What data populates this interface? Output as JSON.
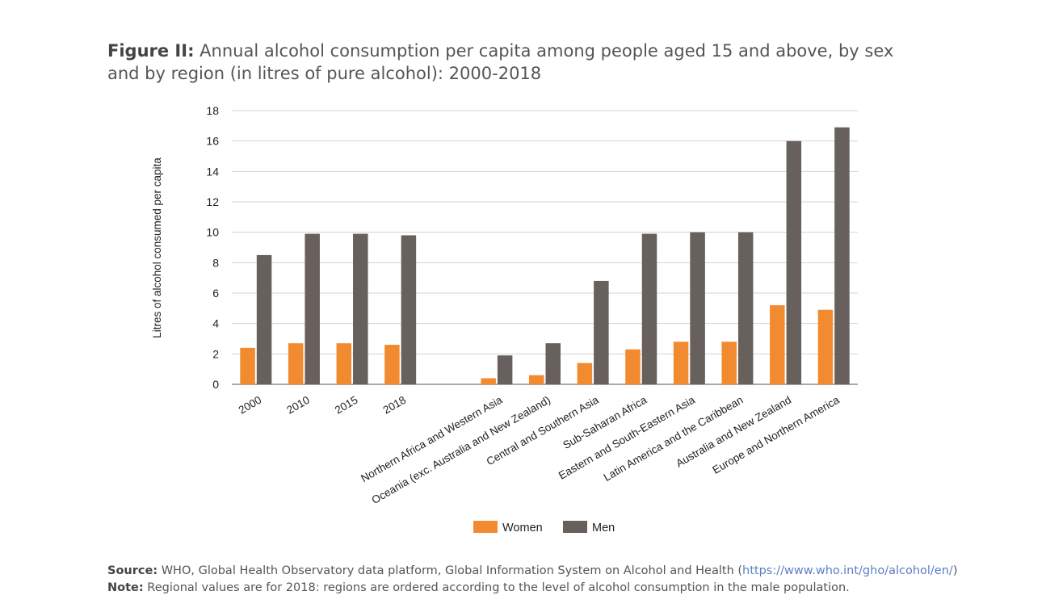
{
  "title": {
    "lead": "Figure II:",
    "text": "Annual alcohol consumption per capita among people aged 15 and above, by sex and by region (in litres of pure alcohol): 2000-2018"
  },
  "chart_data": {
    "type": "bar",
    "ylabel": "Litres of alcohol consumed per capita",
    "ylim": [
      0,
      18
    ],
    "yticks": [
      "0",
      "2",
      "4",
      "6",
      "8",
      "10",
      "12",
      "14",
      "16",
      "18"
    ],
    "grid": true,
    "legend_position": "bottom",
    "categories": [
      "2000",
      "2010",
      "2015",
      "2018",
      "",
      "Northern Africa and Western Asia",
      "Oceania (exc. Australia and New Zealand)",
      "Central and Southern Asia",
      "Sub-Saharan Africa",
      "Eastern and South-Eastern Asia",
      "Latin America and the Caribbean",
      "Australia and New Zealand",
      "Europe and Northern America"
    ],
    "series": [
      {
        "name": "Women",
        "color": "#f28b2f",
        "values": [
          2.4,
          2.7,
          2.7,
          2.6,
          null,
          0.4,
          0.6,
          1.4,
          2.3,
          2.8,
          2.8,
          5.2,
          4.9
        ]
      },
      {
        "name": "Men",
        "color": "#67605c",
        "values": [
          8.5,
          9.9,
          9.9,
          9.8,
          null,
          1.9,
          2.7,
          6.8,
          9.9,
          10.0,
          10.0,
          16.0,
          16.9
        ]
      }
    ]
  },
  "notes": {
    "source_label": "Source:",
    "source_text": "WHO, Global Health Observatory data platform, Global Information System on Alcohol and Health (",
    "source_link": "https://www.who.int/gho/alcohol/en/",
    "source_close": ")",
    "note_label": "Note:",
    "note_text": "Regional values are for 2018: regions are ordered according to the level of alcohol consumption in the male population."
  }
}
